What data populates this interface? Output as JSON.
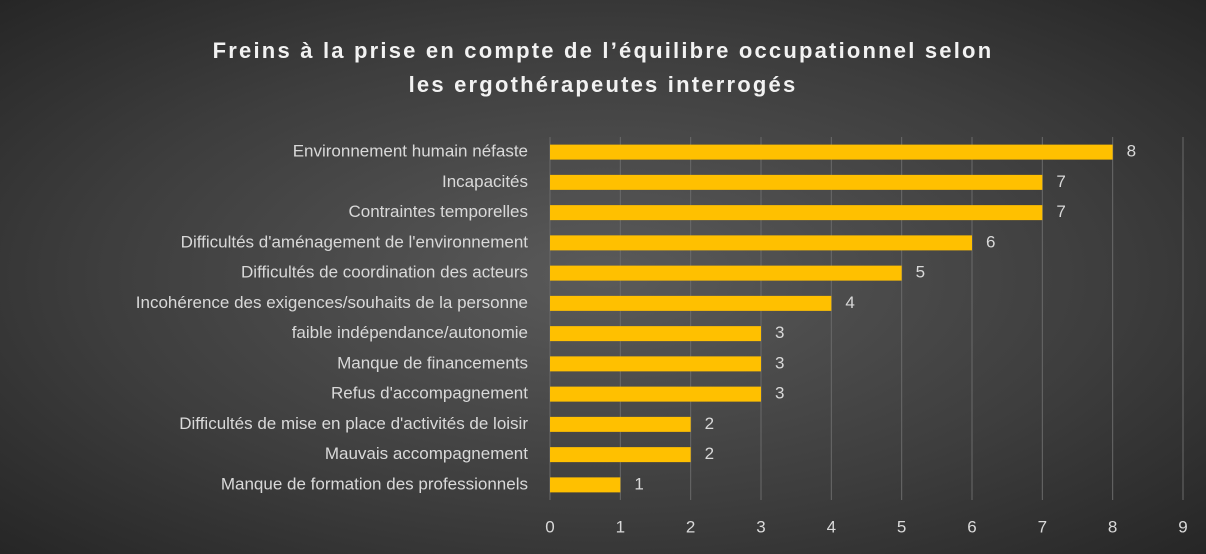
{
  "chart_data": {
    "type": "bar",
    "orientation": "horizontal",
    "title": "Freins à la prise en compte de l’équilibre occupationnel selon les ergothérapeutes interrogés",
    "categories": [
      "Environnement humain néfaste",
      "Incapacités",
      "Contraintes temporelles",
      "Difficultés d'aménagement de l'environnement",
      "Difficultés de coordination des acteurs",
      "Incohérence des exigences/souhaits de la personne",
      "faible indépendance/autonomie",
      "Manque de financements",
      "Refus d'accompagnement",
      "Difficultés de mise en place d'activités de loisir",
      "Mauvais accompagnement",
      "Manque de formation des professionnels"
    ],
    "values": [
      8,
      7,
      7,
      6,
      5,
      4,
      3,
      3,
      3,
      2,
      2,
      1
    ],
    "color": "#ffc000",
    "xlim": [
      0,
      9
    ],
    "xticks": [
      0,
      1,
      2,
      3,
      4,
      5,
      6,
      7,
      8,
      9
    ],
    "grid": true
  }
}
